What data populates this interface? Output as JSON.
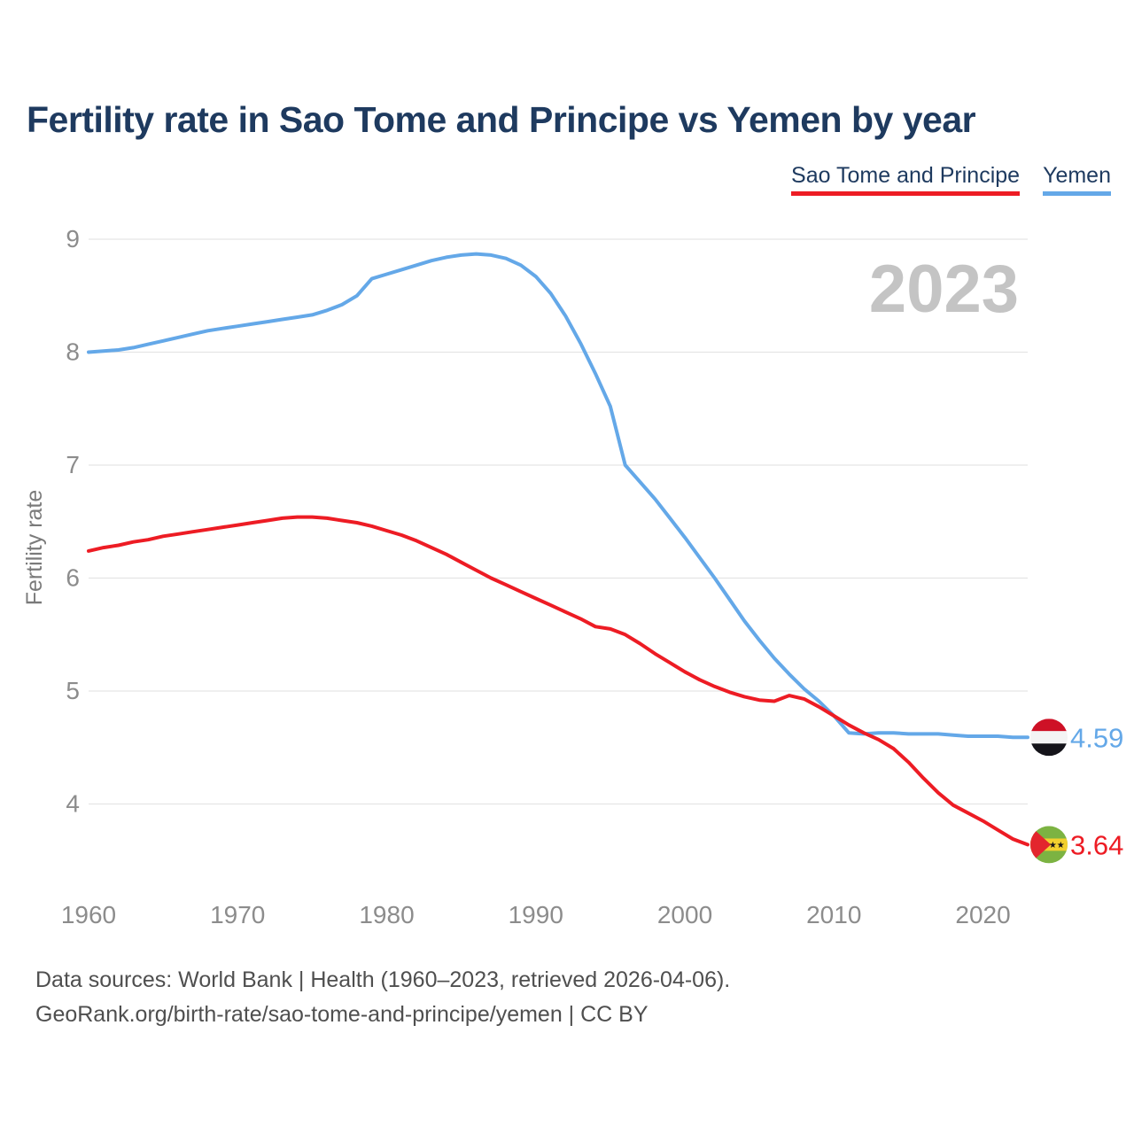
{
  "header": {
    "title": "Fertility rate in Sao Tome and Principe vs Yemen by year"
  },
  "legend": {
    "items": [
      {
        "label": "Sao Tome and Principe",
        "color": "#ed1c24"
      },
      {
        "label": "Yemen",
        "color": "#64a8e8"
      }
    ]
  },
  "watermark": "2023",
  "footer": {
    "line1": "Data sources: World Bank | Health (1960–2023, retrieved 2026-04-06).",
    "line2": "GeoRank.org/birth-rate/sao-tome-and-principe/yemen | CC BY"
  },
  "chart_data": {
    "type": "line",
    "title": "Fertility rate in Sao Tome and Principe vs Yemen by year",
    "xlabel": "",
    "ylabel": "Fertility rate",
    "x_ticks": [
      1960,
      1970,
      1980,
      1990,
      2000,
      2010,
      2020
    ],
    "y_ticks": [
      4,
      5,
      6,
      7,
      8,
      9
    ],
    "xlim": [
      1960,
      2023
    ],
    "ylim": [
      3.4,
      9.3
    ],
    "grid": true,
    "legend_position": "top-right",
    "x": [
      1960,
      1961,
      1962,
      1963,
      1964,
      1965,
      1966,
      1967,
      1968,
      1969,
      1970,
      1971,
      1972,
      1973,
      1974,
      1975,
      1976,
      1977,
      1978,
      1979,
      1980,
      1981,
      1982,
      1983,
      1984,
      1985,
      1986,
      1987,
      1988,
      1989,
      1990,
      1991,
      1992,
      1993,
      1994,
      1995,
      1996,
      1997,
      1998,
      1999,
      2000,
      2001,
      2002,
      2003,
      2004,
      2005,
      2006,
      2007,
      2008,
      2009,
      2010,
      2011,
      2012,
      2013,
      2014,
      2015,
      2016,
      2017,
      2018,
      2019,
      2020,
      2021,
      2022,
      2023
    ],
    "series": [
      {
        "name": "Yemen",
        "color": "#64a8e8",
        "flag": "yemen",
        "end_label": "4.59",
        "values": [
          8.0,
          8.01,
          8.02,
          8.04,
          8.07,
          8.1,
          8.13,
          8.16,
          8.19,
          8.21,
          8.23,
          8.25,
          8.27,
          8.29,
          8.31,
          8.33,
          8.37,
          8.42,
          8.5,
          8.65,
          8.69,
          8.73,
          8.77,
          8.81,
          8.84,
          8.86,
          8.87,
          8.86,
          8.83,
          8.77,
          8.67,
          8.52,
          8.32,
          8.08,
          7.81,
          7.52,
          7.0,
          6.85,
          6.7,
          6.53,
          6.36,
          6.18,
          6.0,
          5.81,
          5.62,
          5.45,
          5.29,
          5.15,
          5.02,
          4.91,
          4.78,
          4.63,
          4.62,
          4.63,
          4.63,
          4.62,
          4.62,
          4.62,
          4.61,
          4.6,
          4.6,
          4.6,
          4.59,
          4.59
        ]
      },
      {
        "name": "Sao Tome and Principe",
        "color": "#ed1c24",
        "flag": "sao-tome-and-principe",
        "end_label": "3.64",
        "values": [
          6.24,
          6.27,
          6.29,
          6.32,
          6.34,
          6.37,
          6.39,
          6.41,
          6.43,
          6.45,
          6.47,
          6.49,
          6.51,
          6.53,
          6.54,
          6.54,
          6.53,
          6.51,
          6.49,
          6.46,
          6.42,
          6.38,
          6.33,
          6.27,
          6.21,
          6.14,
          6.07,
          6.0,
          5.94,
          5.88,
          5.82,
          5.76,
          5.7,
          5.64,
          5.57,
          5.55,
          5.5,
          5.42,
          5.33,
          5.25,
          5.17,
          5.1,
          5.04,
          4.99,
          4.95,
          4.92,
          4.91,
          4.96,
          4.93,
          4.86,
          4.78,
          4.7,
          4.63,
          4.57,
          4.49,
          4.37,
          4.23,
          4.1,
          3.99,
          3.92,
          3.85,
          3.77,
          3.69,
          3.64
        ]
      }
    ],
    "colors": {
      "grid": "#e5e5e5",
      "tick_text": "#8c8c8c",
      "axis_label_text": "#7a7a7a",
      "watermark": "#c4c4c4",
      "title_text": "#1e3a5f"
    }
  }
}
